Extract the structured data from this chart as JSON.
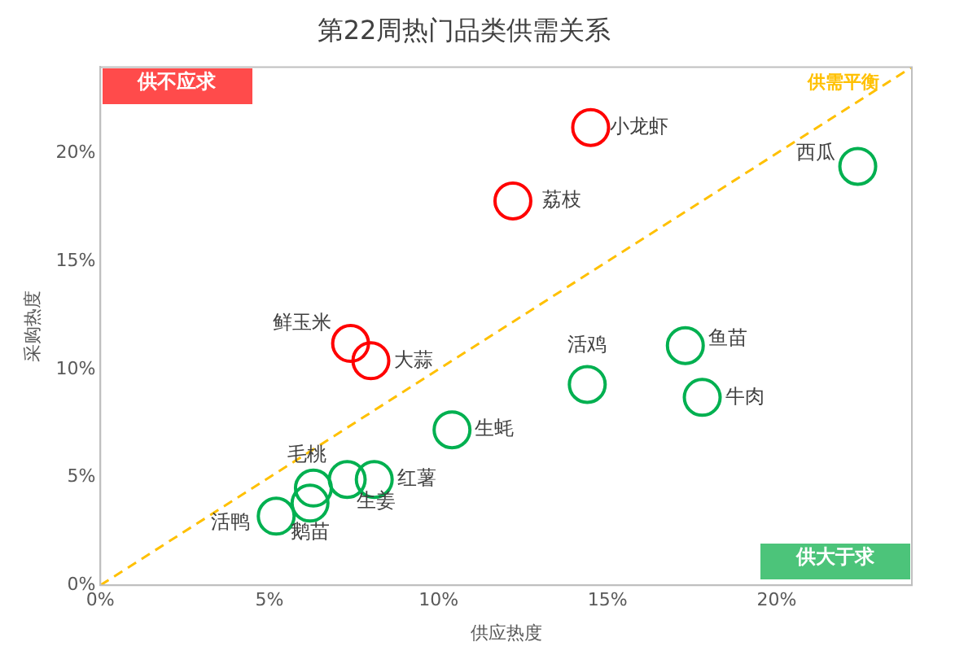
{
  "chart_data": {
    "type": "scatter",
    "title": "第22周热门品类供需关系",
    "xlabel": "供应热度",
    "ylabel": "采购热度",
    "xlim": [
      0,
      24
    ],
    "ylim": [
      0,
      24
    ],
    "xticks": [
      {
        "value": 0,
        "label": "0%"
      },
      {
        "value": 5,
        "label": "5%"
      },
      {
        "value": 10,
        "label": "10%"
      },
      {
        "value": 15,
        "label": "15%"
      },
      {
        "value": 20,
        "label": "20%"
      }
    ],
    "yticks": [
      {
        "value": 0,
        "label": "0%"
      },
      {
        "value": 5,
        "label": "5%"
      },
      {
        "value": 10,
        "label": "10%"
      },
      {
        "value": 15,
        "label": "15%"
      },
      {
        "value": 20,
        "label": "20%"
      }
    ],
    "grid": false,
    "legend": false,
    "marker": "circle",
    "annotations": [
      "供不应求",
      "供大于求"
    ],
    "series": [
      {
        "color": "#ff0000",
        "x": [
          14.5,
          12.2,
          7.4,
          8.0
        ],
        "values": [
          21.2,
          17.8,
          11.2,
          10.4
        ],
        "value_labels": [
          "小龙虾",
          "荔枝",
          "鲜玉米",
          "大蒜"
        ]
      },
      {
        "color": "#00b050",
        "x": [
          22.4,
          14.4,
          17.3,
          17.8,
          10.4,
          6.3,
          8.1,
          7.3,
          6.2,
          5.2
        ],
        "values": [
          19.4,
          9.3,
          11.1,
          8.7,
          7.2,
          4.5,
          4.9,
          4.9,
          3.8,
          3.2
        ],
        "value_labels": [
          "西瓜",
          "活鸡",
          "鱼苗",
          "牛肉",
          "生蚝",
          "毛桃",
          "红薯",
          "生姜",
          "鹅苗",
          "活鸭"
        ]
      },
      {
        "type": "line",
        "name": "供需平衡",
        "color": "#ffc000",
        "line_style": "dashed",
        "marker": "none",
        "x": [
          0,
          24
        ],
        "values": [
          0,
          24
        ]
      }
    ]
  }
}
